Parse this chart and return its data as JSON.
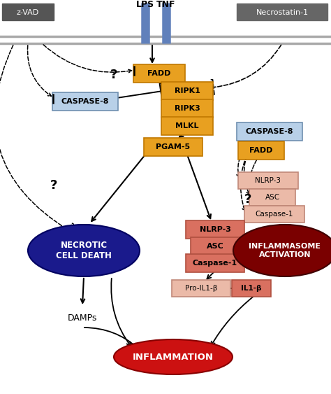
{
  "fig_width": 4.74,
  "fig_height": 5.63,
  "dpi": 100,
  "bg_color": "#ffffff",
  "colors": {
    "zvad_box": "#555555",
    "necrostatin_box": "#666666",
    "lps_bar": "#6080bb",
    "tnf_bar": "#6080bb",
    "orange_box": "#e8a020",
    "orange_edge": "#c07800",
    "blue_box_light": "#b8d0e8",
    "blue_edge": "#7090b0",
    "pink_dark": "#d97060",
    "pink_dark_edge": "#b05040",
    "pink_light": "#ebbaa8",
    "pink_light_edge": "#c08878",
    "necrotic_fill": "#1a1a8c",
    "necrotic_edge": "#000060",
    "inflammasome_fill": "#7a0000",
    "inflammasome_edge": "#400000",
    "inflammation_fill": "#cc1111",
    "inflammation_edge": "#880000"
  },
  "labels": {
    "zvad": "z-VAD",
    "lps": "LPS",
    "tnf": "TNF",
    "necrostatin": "Necrostatin-1",
    "fadd1": "FADD",
    "caspase8_left": "CASPASE-8",
    "ripk1": "RIPK1",
    "ripk3": "RIPK3",
    "mlkl": "MLKL",
    "pgam5": "PGAM-5",
    "caspase8_right": "CASPASE-8",
    "fadd2": "FADD",
    "nlrp3_right": "NLRP-3",
    "asc_right": "ASC",
    "caspase1_right": "Caspase-1",
    "nlrp3_mid": "NLRP-3",
    "asc_mid": "ASC",
    "caspase1_mid": "Caspase-1",
    "proil1b": "Pro-IL1-β",
    "il1b": "IL1-β",
    "necrotic": "NECROTIC\nCELL DEATH",
    "damps": "DAMPs",
    "inflammasome": "INFLAMMASOME\nACTIVATION",
    "inflammation": "INFLAMMATION"
  }
}
